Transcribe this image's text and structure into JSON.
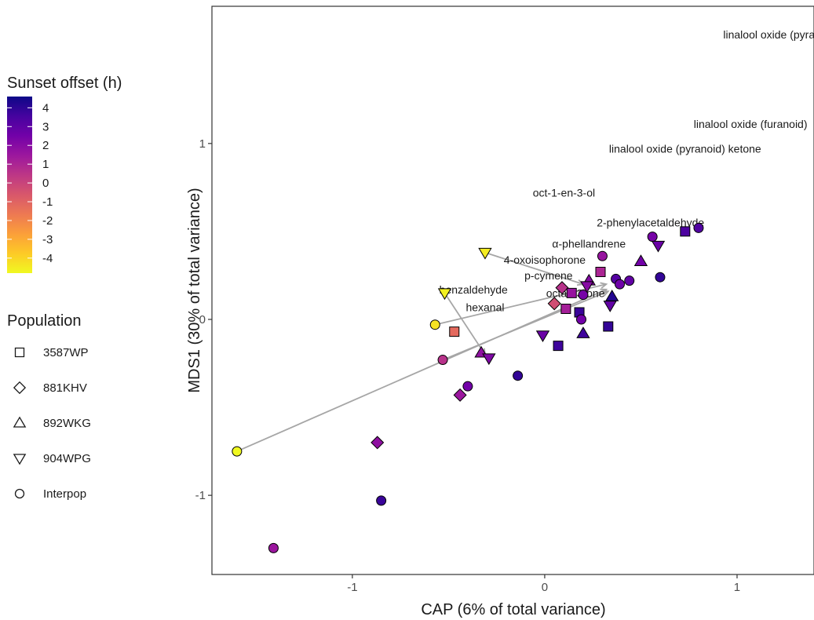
{
  "chart_data": {
    "type": "scatter",
    "xlabel": "CAP (6% of total variance)",
    "ylabel": "MDS1 (30% of total variance)",
    "xlim": [
      -1.73,
      1.4
    ],
    "ylim": [
      -1.45,
      1.78
    ],
    "xticks": [
      {
        "v": -1,
        "label": "-1"
      },
      {
        "v": 0,
        "label": "0"
      },
      {
        "v": 1,
        "label": "1"
      }
    ],
    "yticks": [
      {
        "v": -1,
        "label": "-1"
      },
      {
        "v": 0,
        "label": "0"
      },
      {
        "v": 1,
        "label": "1"
      }
    ],
    "grid": false,
    "colorbar": {
      "title": "Sunset offset (h)",
      "min": -4.8,
      "max": 4.6,
      "ticks": [
        {
          "v": 4,
          "label": "4"
        },
        {
          "v": 3,
          "label": "3"
        },
        {
          "v": 2,
          "label": "2"
        },
        {
          "v": 1,
          "label": "1"
        },
        {
          "v": 0,
          "label": "0"
        },
        {
          "v": -1,
          "label": "-1"
        },
        {
          "v": -2,
          "label": "-2"
        },
        {
          "v": -3,
          "label": "-3"
        },
        {
          "v": -4,
          "label": "-4"
        }
      ],
      "palette": [
        "#f0f921",
        "#fdca26",
        "#fb9f3a",
        "#ed7953",
        "#d8576b",
        "#bd3786",
        "#9c179e",
        "#7201a8",
        "#46039f",
        "#0d0887"
      ]
    },
    "shape_legend": {
      "title": "Population",
      "entries": [
        {
          "label": "3587WP",
          "shape": "square"
        },
        {
          "label": "881KHV",
          "shape": "diamond"
        },
        {
          "label": "892WKG",
          "shape": "triangle-up"
        },
        {
          "label": "904WPG",
          "shape": "triangle-down"
        },
        {
          "label": "Interpop",
          "shape": "circle"
        }
      ]
    },
    "compound_labels": [
      {
        "text": "linalool oxide (pyranoid)",
        "x": 1.23,
        "y": 1.62
      },
      {
        "text": "linalool oxide (furanoid)",
        "x": 1.07,
        "y": 1.11
      },
      {
        "text": "linalool oxide (pyranoid) ketone",
        "x": 0.73,
        "y": 0.97
      },
      {
        "text": "oct-1-en-3-ol",
        "x": 0.1,
        "y": 0.72
      },
      {
        "text": "2-phenylacetaldehyde",
        "x": 0.55,
        "y": 0.55
      },
      {
        "text": "α-phellandrene",
        "x": 0.23,
        "y": 0.43
      },
      {
        "text": "4-oxoisophorone",
        "x": 0.0,
        "y": 0.34
      },
      {
        "text": "p-cymene",
        "x": 0.02,
        "y": 0.25
      },
      {
        "text": "benzaldehyde",
        "x": -0.37,
        "y": 0.17
      },
      {
        "text": "octan-3-one",
        "x": 0.16,
        "y": 0.15
      },
      {
        "text": "hexanal",
        "x": -0.31,
        "y": 0.07
      }
    ],
    "arrows": [
      {
        "x0": -1.6,
        "y0": -0.75,
        "x1": 0.32,
        "y1": 0.17
      },
      {
        "x0": -0.53,
        "y0": -0.23,
        "x1": 0.33,
        "y1": 0.16
      },
      {
        "x0": -0.57,
        "y0": -0.03,
        "x1": 0.32,
        "y1": 0.2
      },
      {
        "x0": -0.31,
        "y0": 0.38,
        "x1": 0.2,
        "y1": 0.2
      },
      {
        "x0": -0.52,
        "y0": 0.15,
        "x1": -0.31,
        "y1": -0.2
      }
    ],
    "points": [
      {
        "x": -1.6,
        "y": -0.75,
        "shape": "circle",
        "offset": -4.8
      },
      {
        "x": -1.41,
        "y": -1.3,
        "shape": "circle",
        "offset": 1.5
      },
      {
        "x": -0.85,
        "y": -1.03,
        "shape": "circle",
        "offset": 3.8
      },
      {
        "x": -0.87,
        "y": -0.7,
        "shape": "diamond",
        "offset": 1.8
      },
      {
        "x": -0.44,
        "y": -0.43,
        "shape": "diamond",
        "offset": 1.5
      },
      {
        "x": -0.4,
        "y": -0.38,
        "shape": "circle",
        "offset": 2.5
      },
      {
        "x": -0.53,
        "y": -0.23,
        "shape": "circle",
        "offset": 0.6
      },
      {
        "x": -0.57,
        "y": -0.03,
        "shape": "circle",
        "offset": -4.3
      },
      {
        "x": -0.47,
        "y": -0.07,
        "shape": "square",
        "offset": -1.2
      },
      {
        "x": -0.52,
        "y": 0.15,
        "shape": "triangle-down",
        "offset": -4.6
      },
      {
        "x": -0.31,
        "y": 0.38,
        "shape": "triangle-down",
        "offset": -4.5
      },
      {
        "x": -0.33,
        "y": -0.19,
        "shape": "triangle-up",
        "offset": 1.8
      },
      {
        "x": -0.29,
        "y": -0.22,
        "shape": "triangle-down",
        "offset": 2.2
      },
      {
        "x": -0.14,
        "y": -0.32,
        "shape": "circle",
        "offset": 3.9
      },
      {
        "x": -0.01,
        "y": -0.09,
        "shape": "triangle-down",
        "offset": 2.7
      },
      {
        "x": 0.07,
        "y": -0.15,
        "shape": "square",
        "offset": 3.7
      },
      {
        "x": 0.05,
        "y": 0.09,
        "shape": "diamond",
        "offset": -0.3
      },
      {
        "x": 0.09,
        "y": 0.18,
        "shape": "diamond",
        "offset": 0.6
      },
      {
        "x": 0.11,
        "y": 0.06,
        "shape": "square",
        "offset": 1.2
      },
      {
        "x": 0.14,
        "y": 0.15,
        "shape": "square",
        "offset": 1.6
      },
      {
        "x": 0.18,
        "y": 0.04,
        "shape": "square",
        "offset": 3.8
      },
      {
        "x": 0.19,
        "y": 0.0,
        "shape": "circle",
        "offset": 2.5
      },
      {
        "x": 0.2,
        "y": -0.08,
        "shape": "triangle-up",
        "offset": 3.7
      },
      {
        "x": 0.2,
        "y": 0.14,
        "shape": "circle",
        "offset": 2.4
      },
      {
        "x": 0.23,
        "y": 0.22,
        "shape": "triangle-up",
        "offset": 2.1
      },
      {
        "x": 0.22,
        "y": 0.19,
        "shape": "triangle-down",
        "offset": 2.0
      },
      {
        "x": 0.29,
        "y": 0.27,
        "shape": "square",
        "offset": 1.0
      },
      {
        "x": 0.3,
        "y": 0.36,
        "shape": "circle",
        "offset": 1.6
      },
      {
        "x": 0.33,
        "y": -0.04,
        "shape": "square",
        "offset": 3.9
      },
      {
        "x": 0.34,
        "y": 0.08,
        "shape": "triangle-down",
        "offset": 2.9
      },
      {
        "x": 0.35,
        "y": 0.13,
        "shape": "triangle-up",
        "offset": 4.2
      },
      {
        "x": 0.37,
        "y": 0.23,
        "shape": "circle",
        "offset": 3.2
      },
      {
        "x": 0.39,
        "y": 0.2,
        "shape": "circle",
        "offset": 2.6
      },
      {
        "x": 0.44,
        "y": 0.22,
        "shape": "circle",
        "offset": 2.9
      },
      {
        "x": 0.5,
        "y": 0.33,
        "shape": "triangle-up",
        "offset": 2.5
      },
      {
        "x": 0.56,
        "y": 0.47,
        "shape": "circle",
        "offset": 2.4
      },
      {
        "x": 0.59,
        "y": 0.42,
        "shape": "triangle-down",
        "offset": 2.7
      },
      {
        "x": 0.6,
        "y": 0.24,
        "shape": "circle",
        "offset": 3.9
      },
      {
        "x": 0.73,
        "y": 0.5,
        "shape": "square",
        "offset": 3.4
      },
      {
        "x": 0.8,
        "y": 0.52,
        "shape": "circle",
        "offset": 3.3
      }
    ]
  }
}
